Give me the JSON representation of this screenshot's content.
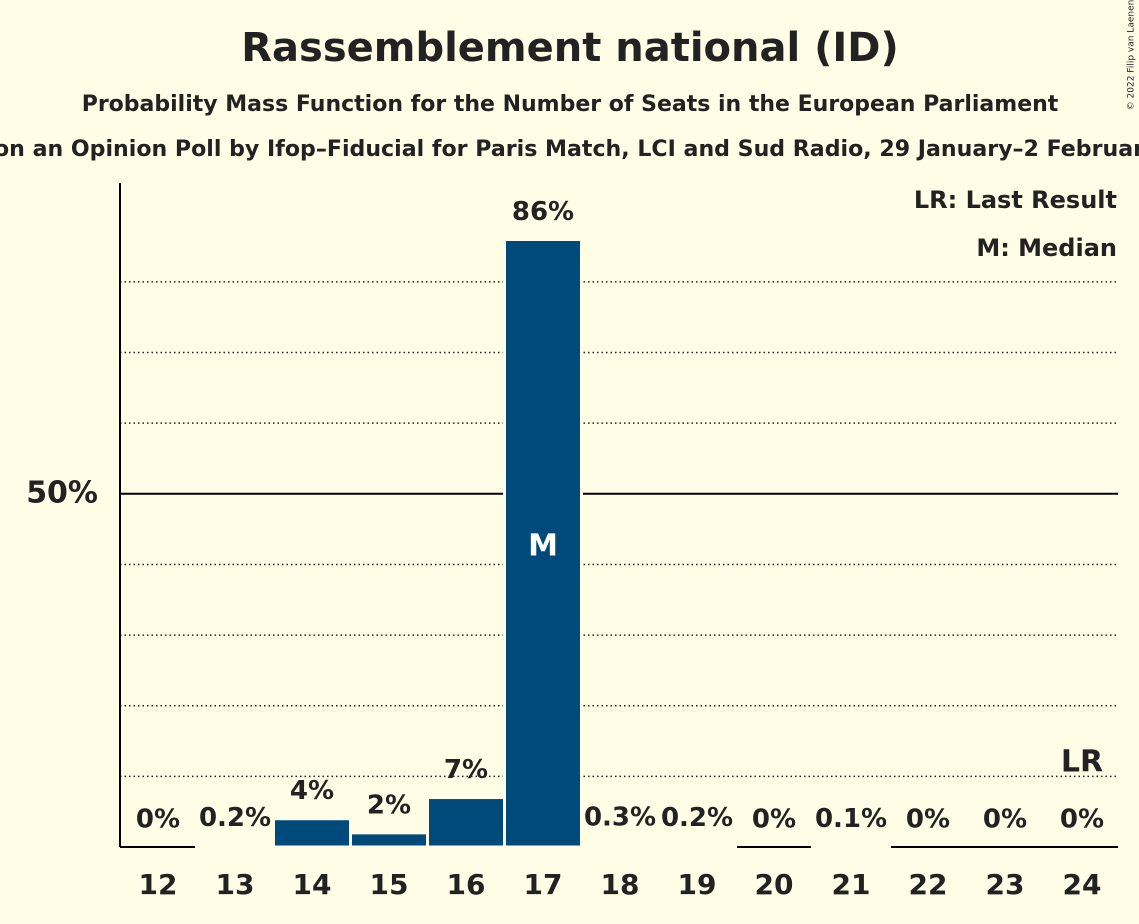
{
  "chart_data": {
    "type": "bar",
    "title": "Rassemblement national (ID)",
    "subtitle": "Probability Mass Function for the Number of Seats in the European Parliament",
    "subtitle2": "on an Opinion Poll by Ifop–Fiducial for Paris Match, LCI and Sud Radio, 29 January–2 Februar",
    "credit": "© 2022 Filip van Laenen",
    "categories": [
      "12",
      "13",
      "14",
      "15",
      "16",
      "17",
      "18",
      "19",
      "20",
      "21",
      "22",
      "23",
      "24"
    ],
    "values": [
      0,
      0.2,
      4,
      2,
      7,
      86,
      0.3,
      0.2,
      0,
      0.1,
      0,
      0,
      0
    ],
    "value_labels": [
      "0%",
      "0.2%",
      "4%",
      "2%",
      "7%",
      "86%",
      "0.3%",
      "0.2%",
      "0%",
      "0.1%",
      "0%",
      "0%",
      "0%"
    ],
    "color": "#004a7b",
    "ylim": [
      0,
      94
    ],
    "yticks": [
      {
        "value": 50,
        "label": "50%"
      }
    ],
    "minor_grid": [
      10,
      20,
      30,
      40,
      60,
      70,
      80
    ],
    "grid": true,
    "median": {
      "label": "M",
      "category": "17"
    },
    "last_result": {
      "label": "LR",
      "category": "24"
    },
    "legend": [
      "LR: Last Result",
      "M: Median"
    ]
  }
}
